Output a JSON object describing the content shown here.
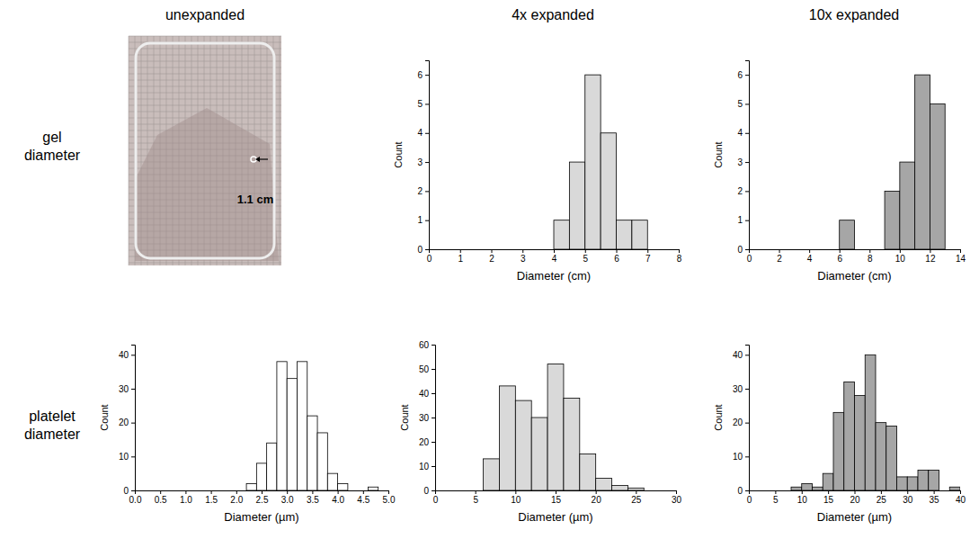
{
  "column_headers": [
    "unexpanded",
    "4x expanded",
    "10x expanded"
  ],
  "row_labels": [
    "gel diameter",
    "platelet diameter"
  ],
  "photo": {
    "annotation": "1.1 cm"
  },
  "chart_data": [
    {
      "type": "histogram",
      "x_label": "Diameter (cm)",
      "y_label": "Count",
      "color": "#d9d9d9",
      "bins": [
        4,
        4.5,
        5,
        5.5,
        6,
        6.5,
        7
      ],
      "values": [
        1,
        3,
        6,
        4,
        1,
        1
      ],
      "xlim": [
        0,
        8
      ],
      "xticks": [
        0,
        1,
        2,
        3,
        4,
        5,
        6,
        7,
        8
      ],
      "ylim": [
        0,
        6.5
      ],
      "yticks": [
        0,
        1,
        2,
        3,
        4,
        5,
        6
      ]
    },
    {
      "type": "histogram",
      "x_label": "Diameter (cm)",
      "y_label": "Count",
      "color": "#a6a6a6",
      "bins": [
        6,
        7,
        8,
        9,
        10,
        11,
        12,
        13
      ],
      "values": [
        1,
        0,
        0,
        2,
        3,
        6,
        5
      ],
      "xlim": [
        0,
        14
      ],
      "xticks": [
        0,
        2,
        4,
        6,
        8,
        10,
        12,
        14
      ],
      "ylim": [
        0,
        6.5
      ],
      "yticks": [
        0,
        1,
        2,
        3,
        4,
        5,
        6
      ]
    },
    {
      "type": "histogram",
      "x_label": "Diameter (µm)",
      "y_label": "Count",
      "color": "#ffffff",
      "bins": [
        2.2,
        2.4,
        2.6,
        2.8,
        3,
        3.2,
        3.4,
        3.6,
        3.8,
        4,
        4.2,
        4.4,
        4.6,
        4.8
      ],
      "values": [
        2,
        8,
        14,
        38,
        33,
        38,
        22,
        17,
        5,
        2,
        0,
        0,
        1
      ],
      "xlim": [
        0,
        5
      ],
      "xticks": [
        {
          "value": 0,
          "label": "0.0"
        },
        0.5,
        {
          "value": 1,
          "label": "1.0"
        },
        1.5,
        {
          "value": 2,
          "label": "2.0"
        },
        2.5,
        {
          "value": 3,
          "label": "3.0"
        },
        3.5,
        {
          "value": 4,
          "label": "4.0"
        },
        4.5,
        {
          "value": 5,
          "label": "5.0"
        }
      ],
      "ylim": [
        0,
        43
      ],
      "yticks": [
        0,
        10,
        20,
        30,
        40
      ]
    },
    {
      "type": "histogram",
      "x_label": "Diameter (µm)",
      "y_label": "Count",
      "color": "#d9d9d9",
      "bins": [
        6,
        8,
        10,
        12,
        14,
        16,
        18,
        20,
        22,
        24,
        26
      ],
      "values": [
        13,
        43,
        37,
        30,
        52,
        38,
        15,
        5,
        2,
        1
      ],
      "xlim": [
        0,
        30
      ],
      "xticks": [
        0,
        5,
        10,
        15,
        20,
        25,
        30
      ],
      "ylim": [
        0,
        60
      ],
      "yticks": [
        0,
        10,
        20,
        30,
        40,
        50,
        60
      ]
    },
    {
      "type": "histogram",
      "x_label": "Diameter (µm)",
      "y_label": "Count",
      "color": "#a6a6a6",
      "bins": [
        8,
        10,
        12,
        14,
        16,
        18,
        20,
        22,
        24,
        26,
        28,
        30,
        32,
        34,
        36,
        38,
        40
      ],
      "values": [
        1,
        2,
        1,
        5,
        23,
        32,
        28,
        40,
        20,
        19,
        4,
        4,
        6,
        6,
        0,
        1
      ],
      "xlim": [
        0,
        40
      ],
      "xticks": [
        0,
        5,
        10,
        15,
        20,
        25,
        30,
        35,
        40
      ],
      "ylim": [
        0,
        43
      ],
      "yticks": [
        0,
        10,
        20,
        30,
        40
      ]
    }
  ]
}
